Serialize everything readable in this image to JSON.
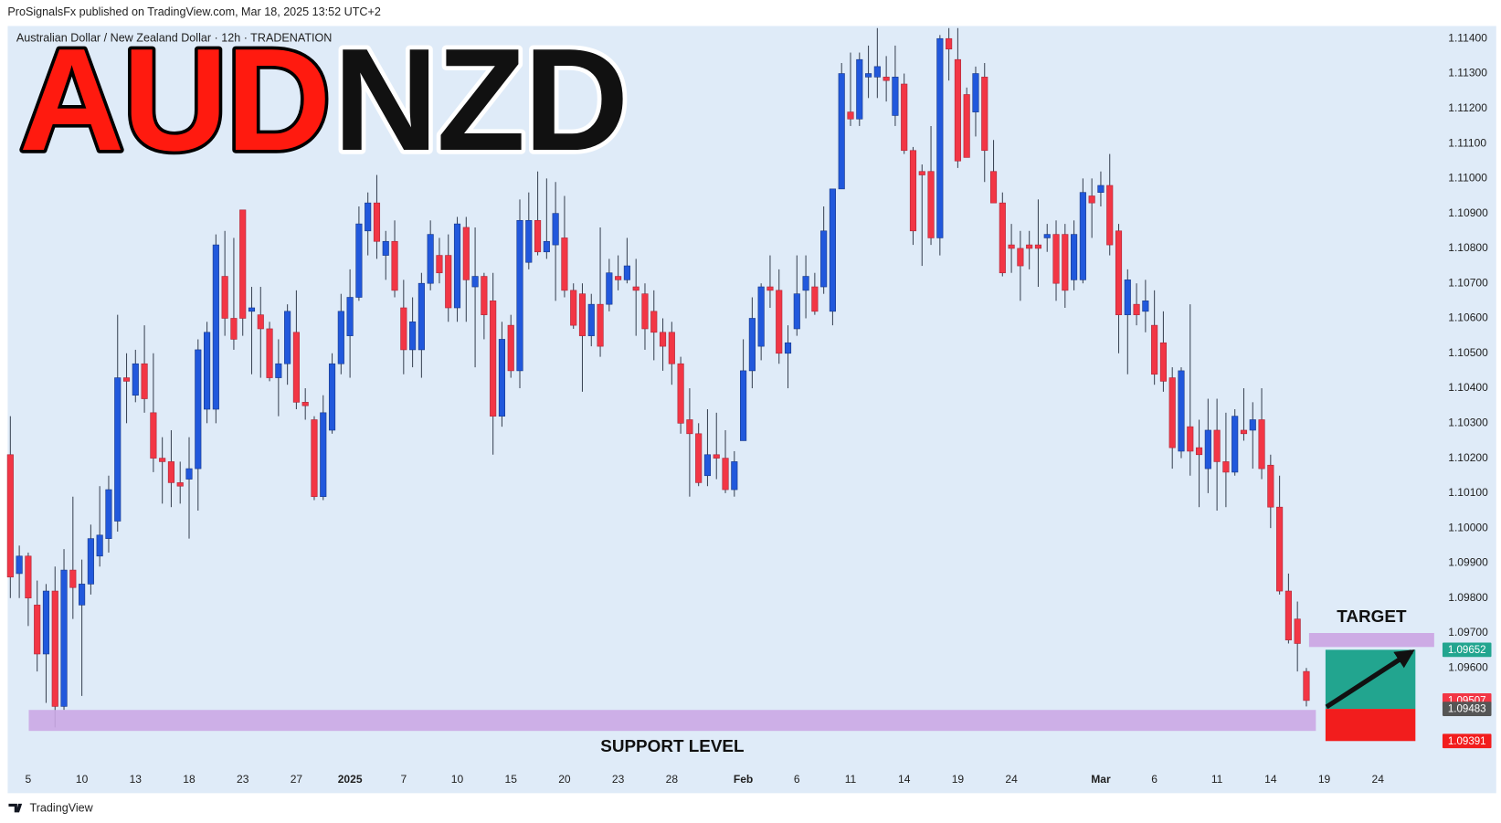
{
  "chart_data": {
    "type": "candlestick",
    "header": "ProSignalsFx published on TradingView.com, Mar 18, 2025 13:52 UTC+2",
    "symbol": "Australian Dollar / New Zealand Dollar · 12h · TRADENATION",
    "title": [
      "AUD",
      "NZD"
    ],
    "title_colors": [
      "#ff1a0f",
      "#111111"
    ],
    "footer": "TradingView",
    "up_color": "#2158dc",
    "down_color": "#f23645",
    "wick_color": "#3c4656",
    "candles": {
      "open": [
        1.1021,
        1.0987,
        1.0992,
        1.0978,
        1.0964,
        1.0982,
        1.0949,
        1.0988,
        1.0978,
        1.0984,
        1.0992,
        1.0997,
        1.1002,
        1.1043,
        1.1038,
        1.1047,
        1.1033,
        1.102,
        1.1019,
        1.1013,
        1.1014,
        1.1017,
        1.1034,
        1.1034,
        1.1072,
        1.106,
        1.1091,
        1.1062,
        1.1061,
        1.1057,
        1.1043,
        1.1047,
        1.1056,
        1.1036,
        1.1031,
        1.1009,
        1.1028,
        1.1047,
        1.1055,
        1.1066,
        1.1085,
        1.1093,
        1.1078,
        1.1082,
        1.1063,
        1.1051,
        1.1051,
        1.107,
        1.1078,
        1.1078,
        1.1063,
        1.1086,
        1.1069,
        1.1072,
        1.1065,
        1.1032,
        1.1058,
        1.1045,
        1.1076,
        1.1088,
        1.1079,
        1.1081,
        1.1083,
        1.1068,
        1.1067,
        1.1055,
        1.1064,
        1.1064,
        1.1072,
        1.1071,
        1.1069,
        1.1067,
        1.1062,
        1.1056,
        1.1056,
        1.1047,
        1.1031,
        1.1027,
        1.1015,
        1.1021,
        1.102,
        1.1011,
        1.1025,
        1.1045,
        1.1052,
        1.1069,
        1.1068,
        1.105,
        1.1057,
        1.1068,
        1.1069,
        1.1069,
        1.1062,
        1.1097,
        1.1119,
        1.1117,
        1.1129,
        1.1129,
        1.1129,
        1.1118,
        1.1127,
        1.1108,
        1.1102,
        1.1102,
        1.1083,
        1.114,
        1.1134,
        1.1124,
        1.1119,
        1.1129,
        1.1102,
        1.1093,
        1.1081,
        1.108,
        1.1081,
        1.1081,
        1.1083,
        1.1084,
        1.1084,
        1.1071,
        1.1071,
        1.1095,
        1.1096,
        1.1098,
        1.1085,
        1.1061,
        1.1064,
        1.1062,
        1.1058,
        1.1053,
        1.1043,
        1.1022,
        1.1029,
        1.1023,
        1.1017,
        1.1028,
        1.1019,
        1.1016,
        1.1028,
        1.1028,
        1.1031,
        1.1018,
        1.1006,
        1.0982,
        1.0974,
        1.0959
      ],
      "high": [
        1.1032,
        1.0995,
        1.0993,
        1.0985,
        1.0984,
        1.0989,
        1.0994,
        1.1009,
        1.0991,
        1.1001,
        1.1012,
        1.1015,
        1.1061,
        1.105,
        1.1051,
        1.1058,
        1.105,
        1.1026,
        1.1028,
        1.1019,
        1.1026,
        1.1054,
        1.1059,
        1.1084,
        1.1085,
        1.1083,
        1.1091,
        1.1069,
        1.1069,
        1.1059,
        1.1054,
        1.1064,
        1.1068,
        1.104,
        1.1032,
        1.1038,
        1.105,
        1.1067,
        1.1074,
        1.1092,
        1.1096,
        1.1101,
        1.1085,
        1.1088,
        1.1071,
        1.1066,
        1.1073,
        1.1088,
        1.1083,
        1.1084,
        1.1089,
        1.1089,
        1.1086,
        1.1073,
        1.1073,
        1.1059,
        1.1061,
        1.1094,
        1.1096,
        1.1102,
        1.11,
        1.1099,
        1.1095,
        1.107,
        1.107,
        1.1067,
        1.1086,
        1.1077,
        1.1078,
        1.1083,
        1.1077,
        1.107,
        1.1068,
        1.106,
        1.1059,
        1.1049,
        1.104,
        1.103,
        1.1034,
        1.1033,
        1.1028,
        1.1022,
        1.1054,
        1.1066,
        1.107,
        1.1078,
        1.1074,
        1.1058,
        1.1078,
        1.1078,
        1.1073,
        1.1092,
        1.1097,
        1.1133,
        1.1136,
        1.1136,
        1.1138,
        1.1143,
        1.1135,
        1.1138,
        1.113,
        1.1109,
        1.1104,
        1.1115,
        1.1141,
        1.1143,
        1.1143,
        1.1126,
        1.1132,
        1.1133,
        1.1111,
        1.1096,
        1.1087,
        1.1085,
        1.1085,
        1.1094,
        1.1087,
        1.1088,
        1.1087,
        1.1088,
        1.11,
        1.11,
        1.1102,
        1.1107,
        1.1087,
        1.1074,
        1.107,
        1.1071,
        1.1068,
        1.1062,
        1.1046,
        1.1046,
        1.1064,
        1.1031,
        1.1037,
        1.1037,
        1.1033,
        1.1034,
        1.104,
        1.1036,
        1.104,
        1.1021,
        1.1015,
        1.0987,
        1.0979,
        1.096
      ],
      "low": [
        1.098,
        1.098,
        1.0972,
        1.0959,
        1.095,
        1.0943,
        1.0948,
        1.0974,
        1.0952,
        1.0981,
        1.0989,
        1.0993,
        1.0999,
        1.103,
        1.1036,
        1.1033,
        1.1016,
        1.1007,
        1.1006,
        1.1007,
        1.0997,
        1.1005,
        1.103,
        1.103,
        1.1055,
        1.1051,
        1.1055,
        1.1044,
        1.1043,
        1.1042,
        1.1032,
        1.1041,
        1.1034,
        1.1031,
        1.1008,
        1.1008,
        1.1027,
        1.1044,
        1.1043,
        1.1065,
        1.1078,
        1.1077,
        1.1071,
        1.1066,
        1.1044,
        1.1046,
        1.1043,
        1.1068,
        1.107,
        1.1059,
        1.1059,
        1.1059,
        1.1046,
        1.1054,
        1.1021,
        1.1029,
        1.1043,
        1.104,
        1.1074,
        1.1078,
        1.1077,
        1.1065,
        1.1066,
        1.1057,
        1.1039,
        1.1052,
        1.1049,
        1.1062,
        1.1068,
        1.107,
        1.1055,
        1.1051,
        1.1048,
        1.1045,
        1.1041,
        1.1027,
        1.1009,
        1.1012,
        1.1012,
        1.1014,
        1.101,
        1.1009,
        1.1025,
        1.104,
        1.1048,
        1.1063,
        1.1047,
        1.104,
        1.1055,
        1.106,
        1.1061,
        1.1067,
        1.1058,
        1.1097,
        1.1115,
        1.1115,
        1.1123,
        1.1123,
        1.1122,
        1.1115,
        1.1107,
        1.1081,
        1.1075,
        1.1081,
        1.1078,
        1.1128,
        1.1103,
        1.1106,
        1.1112,
        1.1099,
        1.1093,
        1.1072,
        1.1073,
        1.1065,
        1.1074,
        1.1069,
        1.1079,
        1.1065,
        1.1063,
        1.1068,
        1.107,
        1.1083,
        1.1092,
        1.1078,
        1.105,
        1.1044,
        1.1058,
        1.1056,
        1.1041,
        1.1039,
        1.1017,
        1.102,
        1.1015,
        1.1006,
        1.101,
        1.1005,
        1.1006,
        1.1015,
        1.1025,
        1.1017,
        1.1014,
        1.1,
        1.0981,
        1.0967,
        1.0959,
        1.0949
      ],
      "close": [
        1.0986,
        1.0992,
        1.098,
        1.0964,
        1.0982,
        1.0949,
        1.0988,
        1.0983,
        1.0984,
        1.0997,
        1.0998,
        1.1011,
        1.1043,
        1.1042,
        1.1047,
        1.1037,
        1.102,
        1.1019,
        1.1013,
        1.1012,
        1.1017,
        1.1051,
        1.1056,
        1.1081,
        1.106,
        1.1054,
        1.106,
        1.1063,
        1.1057,
        1.1043,
        1.1047,
        1.1062,
        1.1036,
        1.1035,
        1.1009,
        1.1033,
        1.1047,
        1.1062,
        1.1066,
        1.1087,
        1.1093,
        1.1082,
        1.1082,
        1.1068,
        1.1051,
        1.1059,
        1.107,
        1.1084,
        1.1073,
        1.1063,
        1.1087,
        1.1071,
        1.1072,
        1.1061,
        1.1032,
        1.1054,
        1.1045,
        1.1088,
        1.1088,
        1.1079,
        1.1082,
        1.109,
        1.1068,
        1.1058,
        1.1055,
        1.1064,
        1.1052,
        1.1073,
        1.1071,
        1.1075,
        1.1068,
        1.1057,
        1.1056,
        1.1052,
        1.1047,
        1.103,
        1.1027,
        1.1013,
        1.1021,
        1.102,
        1.1011,
        1.1019,
        1.1045,
        1.106,
        1.1069,
        1.1068,
        1.105,
        1.1053,
        1.1067,
        1.1072,
        1.1062,
        1.1085,
        1.1097,
        1.113,
        1.1117,
        1.1134,
        1.113,
        1.1132,
        1.1128,
        1.1129,
        1.1108,
        1.1085,
        1.1101,
        1.1083,
        1.114,
        1.1137,
        1.1105,
        1.1106,
        1.113,
        1.1108,
        1.1093,
        1.1073,
        1.108,
        1.1075,
        1.108,
        1.108,
        1.1084,
        1.107,
        1.1068,
        1.1084,
        1.1096,
        1.1093,
        1.1098,
        1.1081,
        1.1061,
        1.1071,
        1.1061,
        1.1065,
        1.1044,
        1.1042,
        1.1023,
        1.1045,
        1.1022,
        1.1021,
        1.1028,
        1.1019,
        1.1016,
        1.1032,
        1.1027,
        1.1031,
        1.1017,
        1.1006,
        1.0982,
        1.0968,
        1.0967,
        1.09507
      ]
    },
    "xlim": [
      -0.3,
      159.8
    ],
    "xticks": [
      {
        "value": 2,
        "label": "5"
      },
      {
        "value": 8,
        "label": "10"
      },
      {
        "value": 14,
        "label": "13"
      },
      {
        "value": 20,
        "label": "18"
      },
      {
        "value": 26,
        "label": "23"
      },
      {
        "value": 32,
        "label": "27"
      },
      {
        "value": 38,
        "label": "2025"
      },
      {
        "value": 44,
        "label": "7"
      },
      {
        "value": 50,
        "label": "10"
      },
      {
        "value": 56,
        "label": "15"
      },
      {
        "value": 62,
        "label": "20"
      },
      {
        "value": 68,
        "label": "23"
      },
      {
        "value": 74,
        "label": "28"
      },
      {
        "value": 82,
        "label": "Feb"
      },
      {
        "value": 88,
        "label": "6"
      },
      {
        "value": 94,
        "label": "11"
      },
      {
        "value": 100,
        "label": "14"
      },
      {
        "value": 106,
        "label": "19"
      },
      {
        "value": 112,
        "label": "24"
      },
      {
        "value": 122,
        "label": "Mar"
      },
      {
        "value": 128,
        "label": "6"
      },
      {
        "value": 135,
        "label": "11"
      },
      {
        "value": 141,
        "label": "14"
      },
      {
        "value": 147,
        "label": "19"
      },
      {
        "value": 153,
        "label": "24"
      }
    ],
    "ylim": [
      1.09316,
      1.11436
    ],
    "yticks": [
      {
        "value": 1.114,
        "label": "1.11400"
      },
      {
        "value": 1.113,
        "label": "1.11300"
      },
      {
        "value": 1.112,
        "label": "1.11200"
      },
      {
        "value": 1.111,
        "label": "1.11100"
      },
      {
        "value": 1.11,
        "label": "1.11000"
      },
      {
        "value": 1.109,
        "label": "1.10900"
      },
      {
        "value": 1.108,
        "label": "1.10800"
      },
      {
        "value": 1.107,
        "label": "1.10700"
      },
      {
        "value": 1.106,
        "label": "1.10600"
      },
      {
        "value": 1.105,
        "label": "1.10500"
      },
      {
        "value": 1.104,
        "label": "1.10400"
      },
      {
        "value": 1.103,
        "label": "1.10300"
      },
      {
        "value": 1.102,
        "label": "1.10200"
      },
      {
        "value": 1.101,
        "label": "1.10100"
      },
      {
        "value": 1.1,
        "label": "1.10000"
      },
      {
        "value": 1.099,
        "label": "1.09900"
      },
      {
        "value": 1.098,
        "label": "1.09800"
      },
      {
        "value": 1.097,
        "label": "1.09700"
      },
      {
        "value": 1.096,
        "label": "1.09600"
      }
    ],
    "grid": false,
    "support": {
      "label": "SUPPORT LEVEL",
      "range": [
        1.0942,
        1.0948
      ],
      "xrange": [
        2.06,
        146.06
      ],
      "color": "#cba8e4"
    },
    "target_zone": {
      "label": "TARGET",
      "range": [
        1.0966,
        1.097
      ],
      "xrange": [
        145.3,
        159.3
      ],
      "color": "#cba8e4"
    },
    "position": {
      "entry": 1.09483,
      "target": 1.09652,
      "stop": 1.09391,
      "xrange": [
        147.14,
        157.2
      ],
      "profit_color": "#22a58f",
      "loss_color": "#f21d1d",
      "entry_color": "#555555"
    },
    "last_price": 1.09507
  }
}
